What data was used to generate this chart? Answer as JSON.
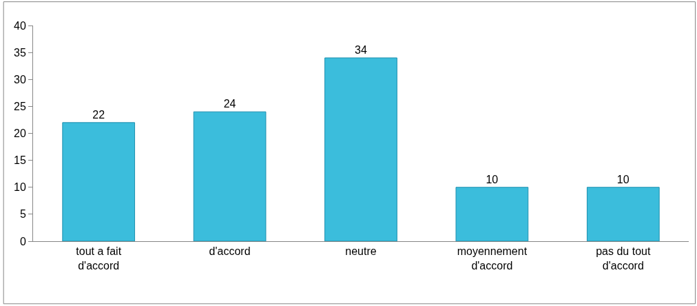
{
  "chart_data": {
    "type": "bar",
    "categories": [
      "tout a fait d'accord",
      "d'accord",
      "neutre",
      "moyennement d'accord",
      "pas du tout d'accord"
    ],
    "values": [
      22,
      24,
      34,
      10,
      10
    ],
    "color": "#3bbddc",
    "ylim": [
      0,
      40
    ],
    "yticks": [
      0,
      5,
      10,
      15,
      20,
      25,
      30,
      35,
      40
    ],
    "data_labels": true
  }
}
